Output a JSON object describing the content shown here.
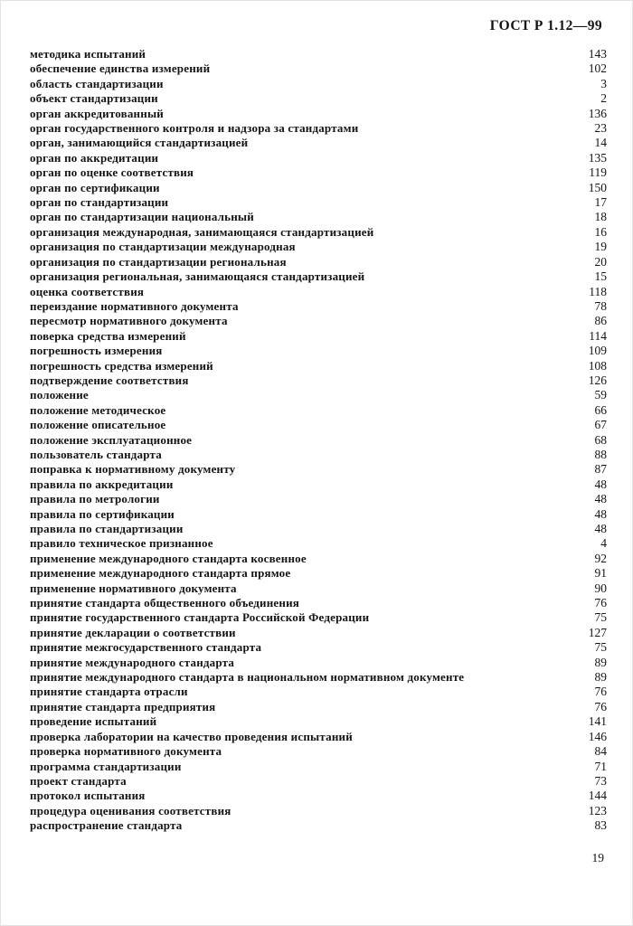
{
  "header": {
    "title": "ГОСТ Р 1.12—99"
  },
  "index": {
    "entries": [
      {
        "term": "методика испытаний",
        "page": "143"
      },
      {
        "term": "обеспечение единства измерений",
        "page": "102"
      },
      {
        "term": "область стандартизации",
        "page": "3"
      },
      {
        "term": "объект стандартизации",
        "page": "2"
      },
      {
        "term": "орган аккредитованный",
        "page": "136"
      },
      {
        "term": "орган государственного контроля и надзора за стандартами",
        "page": "23"
      },
      {
        "term": "орган, занимающийся стандартизацией",
        "page": "14"
      },
      {
        "term": "орган по аккредитации",
        "page": "135"
      },
      {
        "term": "орган по оценке соответствия",
        "page": "119"
      },
      {
        "term": "орган по сертификации",
        "page": "150"
      },
      {
        "term": "орган по стандартизации",
        "page": "17"
      },
      {
        "term": "орган по стандартизации национальный",
        "page": "18"
      },
      {
        "term": "организация международная, занимающаяся стандартизацией",
        "page": "16"
      },
      {
        "term": "организация по стандартизации международная",
        "page": "19"
      },
      {
        "term": "организация по стандартизации региональная",
        "page": "20"
      },
      {
        "term": "организация региональная, занимающаяся стандартизацией",
        "page": "15"
      },
      {
        "term": "оценка соответствия",
        "page": "118"
      },
      {
        "term": "переиздание нормативного документа",
        "page": "78"
      },
      {
        "term": "пересмотр нормативного документа",
        "page": "86"
      },
      {
        "term": "поверка средства измерений",
        "page": "114"
      },
      {
        "term": "погрешность измерения",
        "page": "109"
      },
      {
        "term": "погрешность средства измерений",
        "page": "108"
      },
      {
        "term": "подтверждение соответствия",
        "page": "126"
      },
      {
        "term": "положение",
        "page": "59"
      },
      {
        "term": "положение методическое",
        "page": "66"
      },
      {
        "term": "положение описательное",
        "page": "67"
      },
      {
        "term": "положение эксплуатационное",
        "page": "68"
      },
      {
        "term": "пользователь стандарта",
        "page": "88"
      },
      {
        "term": "поправка к нормативному документу",
        "page": "87"
      },
      {
        "term": "правила по аккредитации",
        "page": "48"
      },
      {
        "term": "правила по метрологии",
        "page": "48"
      },
      {
        "term": "правила по сертификации",
        "page": "48"
      },
      {
        "term": "правила по стандартизации",
        "page": "48"
      },
      {
        "term": "правило техническое признанное",
        "page": "4"
      },
      {
        "term": "применение международного стандарта косвенное",
        "page": "92"
      },
      {
        "term": "применение международного стандарта прямое",
        "page": "91"
      },
      {
        "term": "применение нормативного документа",
        "page": "90"
      },
      {
        "term": "принятие стандарта общественного объединения",
        "page": "76"
      },
      {
        "term": "принятие государственного стандарта Российской Федерации",
        "page": "75"
      },
      {
        "term": "принятие декларации о соответствии",
        "page": "127"
      },
      {
        "term": "принятие межгосударственного стандарта",
        "page": "75"
      },
      {
        "term": "принятие международного стандарта",
        "page": "89"
      },
      {
        "term": "принятие международного стандарта в национальном нормативном документе",
        "page": "89"
      },
      {
        "term": "принятие стандарта отрасли",
        "page": "76"
      },
      {
        "term": "принятие стандарта предприятия",
        "page": "76"
      },
      {
        "term": "проведение испытаний",
        "page": "141"
      },
      {
        "term": "проверка лаборатории на качество проведения испытаний",
        "page": "146"
      },
      {
        "term": "проверка нормативного документа",
        "page": "84"
      },
      {
        "term": "программа стандартизации",
        "page": "71"
      },
      {
        "term": "проект стандарта",
        "page": "73"
      },
      {
        "term": "протокол испытания",
        "page": "144"
      },
      {
        "term": "процедура оценивания соответствия",
        "page": "123"
      },
      {
        "term": "распространение стандарта",
        "page": "83"
      }
    ]
  },
  "footer": {
    "page_number": "19"
  },
  "colors": {
    "text": "#141414",
    "background": "#ffffff"
  }
}
